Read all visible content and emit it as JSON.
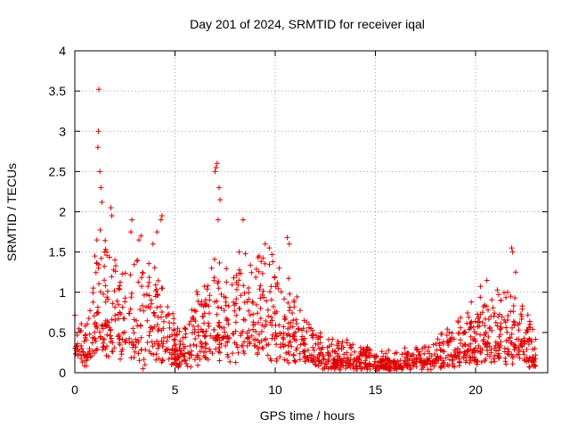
{
  "chart_data": {
    "type": "scatter",
    "title": "Day 201 of 2024, SRMTID for receiver iqal",
    "xlabel": "GPS time / hours",
    "ylabel": "SRMTID / TECUs",
    "xlim": [
      0,
      23.6
    ],
    "ylim": [
      0,
      4
    ],
    "xticks": [
      0,
      5,
      10,
      15,
      20
    ],
    "xtick_labels": [
      "0",
      "5",
      "10",
      "15",
      "20"
    ],
    "yticks": [
      0,
      0.5,
      1,
      1.5,
      2,
      2.5,
      3,
      3.5,
      4
    ],
    "ytick_labels": [
      "0",
      "0.5",
      "1",
      "1.5",
      "2",
      "2.5",
      "3",
      "3.5",
      "4"
    ],
    "grid": true,
    "marker": "plus",
    "color": "#e00000",
    "series": [
      {
        "name": "SRMTID",
        "profile": [
          [
            0.0,
            0.45
          ],
          [
            0.5,
            0.35
          ],
          [
            1.0,
            0.75
          ],
          [
            1.3,
            1.1
          ],
          [
            1.8,
            0.9
          ],
          [
            2.5,
            0.75
          ],
          [
            3.0,
            0.85
          ],
          [
            3.5,
            0.8
          ],
          [
            4.0,
            0.85
          ],
          [
            4.5,
            0.7
          ],
          [
            5.0,
            0.4
          ],
          [
            5.5,
            0.35
          ],
          [
            6.0,
            0.55
          ],
          [
            6.5,
            0.65
          ],
          [
            7.0,
            0.9
          ],
          [
            7.5,
            0.8
          ],
          [
            8.0,
            0.75
          ],
          [
            8.5,
            0.85
          ],
          [
            9.0,
            0.95
          ],
          [
            9.5,
            0.9
          ],
          [
            10.0,
            0.8
          ],
          [
            10.5,
            0.7
          ],
          [
            11.0,
            0.55
          ],
          [
            11.5,
            0.45
          ],
          [
            12.0,
            0.3
          ],
          [
            13.0,
            0.22
          ],
          [
            14.0,
            0.25
          ],
          [
            15.0,
            0.16
          ],
          [
            16.0,
            0.15
          ],
          [
            17.0,
            0.2
          ],
          [
            18.0,
            0.25
          ],
          [
            19.0,
            0.35
          ],
          [
            19.5,
            0.45
          ],
          [
            20.0,
            0.55
          ],
          [
            20.5,
            0.7
          ],
          [
            21.0,
            0.65
          ],
          [
            21.5,
            0.6
          ],
          [
            22.0,
            0.6
          ],
          [
            22.5,
            0.45
          ],
          [
            23.0,
            0.3
          ]
        ],
        "peaks": [
          [
            1.0,
            1.45
          ],
          [
            1.1,
            1.65
          ],
          [
            1.15,
            2.8
          ],
          [
            1.18,
            3.0
          ],
          [
            1.2,
            3.52
          ],
          [
            1.25,
            2.5
          ],
          [
            1.3,
            2.3
          ],
          [
            1.35,
            2.12
          ],
          [
            1.6,
            1.5
          ],
          [
            1.8,
            2.05
          ],
          [
            1.85,
            1.95
          ],
          [
            2.0,
            1.4
          ],
          [
            2.8,
            1.75
          ],
          [
            2.85,
            1.9
          ],
          [
            3.2,
            1.65
          ],
          [
            3.3,
            1.7
          ],
          [
            3.4,
            0.05
          ],
          [
            3.5,
            0.1
          ],
          [
            3.9,
            1.6
          ],
          [
            4.1,
            1.75
          ],
          [
            4.3,
            1.9
          ],
          [
            4.35,
            1.95
          ],
          [
            7.0,
            2.5
          ],
          [
            7.05,
            2.55
          ],
          [
            7.1,
            2.6
          ],
          [
            7.2,
            2.3
          ],
          [
            7.25,
            2.15
          ],
          [
            7.15,
            1.9
          ],
          [
            8.4,
            1.9
          ],
          [
            8.2,
            1.5
          ],
          [
            9.2,
            1.45
          ],
          [
            9.5,
            1.6
          ],
          [
            9.7,
            1.55
          ],
          [
            10.6,
            1.68
          ],
          [
            10.7,
            1.6
          ],
          [
            10.2,
            1.3
          ],
          [
            21.8,
            1.55
          ],
          [
            21.85,
            1.5
          ],
          [
            22.0,
            1.25
          ],
          [
            21.6,
            1.0
          ]
        ]
      }
    ]
  }
}
